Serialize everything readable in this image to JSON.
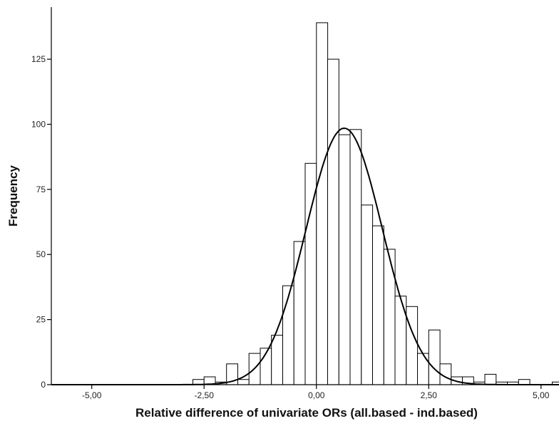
{
  "chart_data": {
    "type": "bar",
    "subtype": "histogram",
    "title": "",
    "xlabel": "Relative difference of univariate ORs (all.based - ind.based)",
    "ylabel": "Frequency",
    "xlim": [
      -5.9,
      5.4
    ],
    "ylim": [
      0,
      145
    ],
    "x_ticks": [
      {
        "value": -5,
        "label": "-5,00"
      },
      {
        "value": -2.5,
        "label": "-2,50"
      },
      {
        "value": 0,
        "label": "0,00"
      },
      {
        "value": 2.5,
        "label": "2,50"
      },
      {
        "value": 5,
        "label": "5,00"
      }
    ],
    "y_ticks": [
      {
        "value": 0,
        "label": "0"
      },
      {
        "value": 25,
        "label": "25"
      },
      {
        "value": 50,
        "label": "50"
      },
      {
        "value": 75,
        "label": "75"
      },
      {
        "value": 100,
        "label": "100"
      },
      {
        "value": 125,
        "label": "125"
      }
    ],
    "bin_width": 0.25,
    "bins": [
      {
        "start": -2.75,
        "count": 2
      },
      {
        "start": -2.5,
        "count": 3
      },
      {
        "start": -2.25,
        "count": 1
      },
      {
        "start": -2.0,
        "count": 8
      },
      {
        "start": -1.75,
        "count": 2
      },
      {
        "start": -1.5,
        "count": 12
      },
      {
        "start": -1.25,
        "count": 14
      },
      {
        "start": -1.0,
        "count": 19
      },
      {
        "start": -0.75,
        "count": 38
      },
      {
        "start": -0.5,
        "count": 55
      },
      {
        "start": -0.25,
        "count": 85
      },
      {
        "start": 0.0,
        "count": 139
      },
      {
        "start": 0.25,
        "count": 125
      },
      {
        "start": 0.5,
        "count": 96
      },
      {
        "start": 0.75,
        "count": 98
      },
      {
        "start": 1.0,
        "count": 69
      },
      {
        "start": 1.25,
        "count": 61
      },
      {
        "start": 1.5,
        "count": 52
      },
      {
        "start": 1.75,
        "count": 34
      },
      {
        "start": 2.0,
        "count": 30
      },
      {
        "start": 2.25,
        "count": 12
      },
      {
        "start": 2.5,
        "count": 21
      },
      {
        "start": 2.75,
        "count": 8
      },
      {
        "start": 3.0,
        "count": 3
      },
      {
        "start": 3.25,
        "count": 3
      },
      {
        "start": 3.5,
        "count": 1
      },
      {
        "start": 3.75,
        "count": 4
      },
      {
        "start": 4.0,
        "count": 1
      },
      {
        "start": 4.25,
        "count": 1
      },
      {
        "start": 4.5,
        "count": 2
      },
      {
        "start": 4.75,
        "count": 0
      },
      {
        "start": 5.0,
        "count": 0
      },
      {
        "start": 5.25,
        "count": 1
      }
    ],
    "normal_curve": {
      "mean": 0.62,
      "sd": 0.85,
      "peak": 98.5,
      "x_range": [
        -5.9,
        5.4
      ]
    },
    "grid": false,
    "legend": "none",
    "colors": {
      "bar_fill": "#ffffff",
      "bar_stroke": "#000000",
      "curve": "#000000",
      "axis": "#000000"
    }
  }
}
